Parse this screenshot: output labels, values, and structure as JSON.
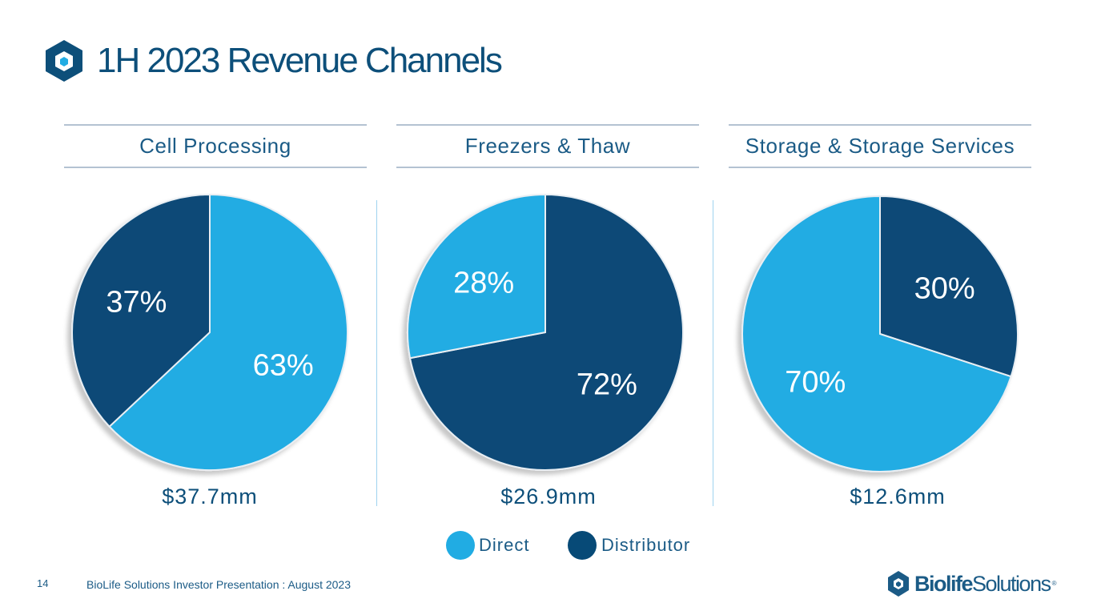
{
  "header": {
    "title": "1H 2023 Revenue Channels"
  },
  "colors": {
    "direct": "#21ace3",
    "distributor": "#074a77",
    "title": "#0d4f7a",
    "rule": "#b4c2d2"
  },
  "icons": {
    "header_logo": "biolife-cube-icon",
    "footer_logo": "biolife-cube-icon"
  },
  "chart_data": [
    {
      "type": "pie",
      "title": "Cell Processing",
      "total_label": "$37.7mm",
      "categories": [
        "Direct",
        "Distributor"
      ],
      "values": [
        63,
        37
      ],
      "labels": [
        "63%",
        "37%"
      ]
    },
    {
      "type": "pie",
      "title": "Freezers & Thaw",
      "total_label": "$26.9mm",
      "categories": [
        "Direct",
        "Distributor"
      ],
      "values": [
        28,
        72
      ],
      "labels": [
        "28%",
        "72%"
      ]
    },
    {
      "type": "pie",
      "title": "Storage & Storage Services",
      "total_label": "$12.6mm",
      "categories": [
        "Direct",
        "Distributor"
      ],
      "values": [
        70,
        30
      ],
      "labels": [
        "70%",
        "30%"
      ]
    }
  ],
  "legend": [
    {
      "label": "Direct"
    },
    {
      "label": "Distributor"
    }
  ],
  "footer": {
    "page_number": "14",
    "text": "BioLife Solutions Investor Presentation : August 2023",
    "brand_part1": "Biolife",
    "brand_part2": "Solutions",
    "brand_reg": "®"
  }
}
